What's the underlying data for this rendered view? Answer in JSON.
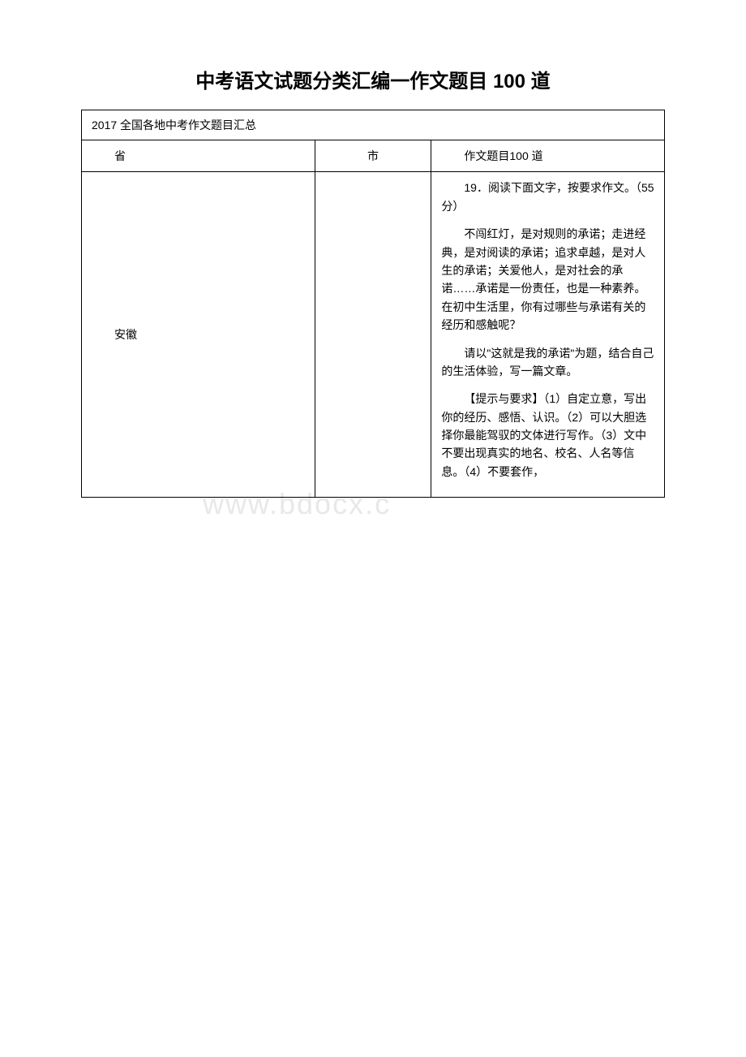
{
  "page": {
    "title": "中考语文试题分类汇编一作文题目 100 道",
    "watermark": "www.bdocx.c"
  },
  "table": {
    "caption": "2017 全国各地中考作文题目汇总",
    "headers": {
      "province": "省",
      "city": "市",
      "topic": "作文题目100 道"
    },
    "rows": [
      {
        "province": "安徽",
        "city": "",
        "content": {
          "p1": "19．阅读下面文字，按要求作文。（55 分）",
          "p2": "不闯红灯，是对规则的承诺；走进经典，是对阅读的承诺；追求卓越，是对人生的承诺；关爱他人，是对社会的承诺……承诺是一份责任，也是一种素养。在初中生活里，你有过哪些与承诺有关的经历和感触呢？",
          "p3": "请以\"这就是我的承诺\"为题，结合自己的生活体验，写一篇文章。",
          "p4": "【提示与要求】（1）自定立意，写出你的经历、感悟、认识。（2）可以大胆选择你最能驾驭的文体进行写作。（3）文中不要出现真实的地名、校名、人名等信息。（4）不要套作，"
        }
      }
    ]
  },
  "styles": {
    "background_color": "#ffffff",
    "border_color": "#000000",
    "text_color": "#000000",
    "watermark_color": "#e8e8e8",
    "title_fontsize": 24,
    "body_fontsize": 14
  }
}
